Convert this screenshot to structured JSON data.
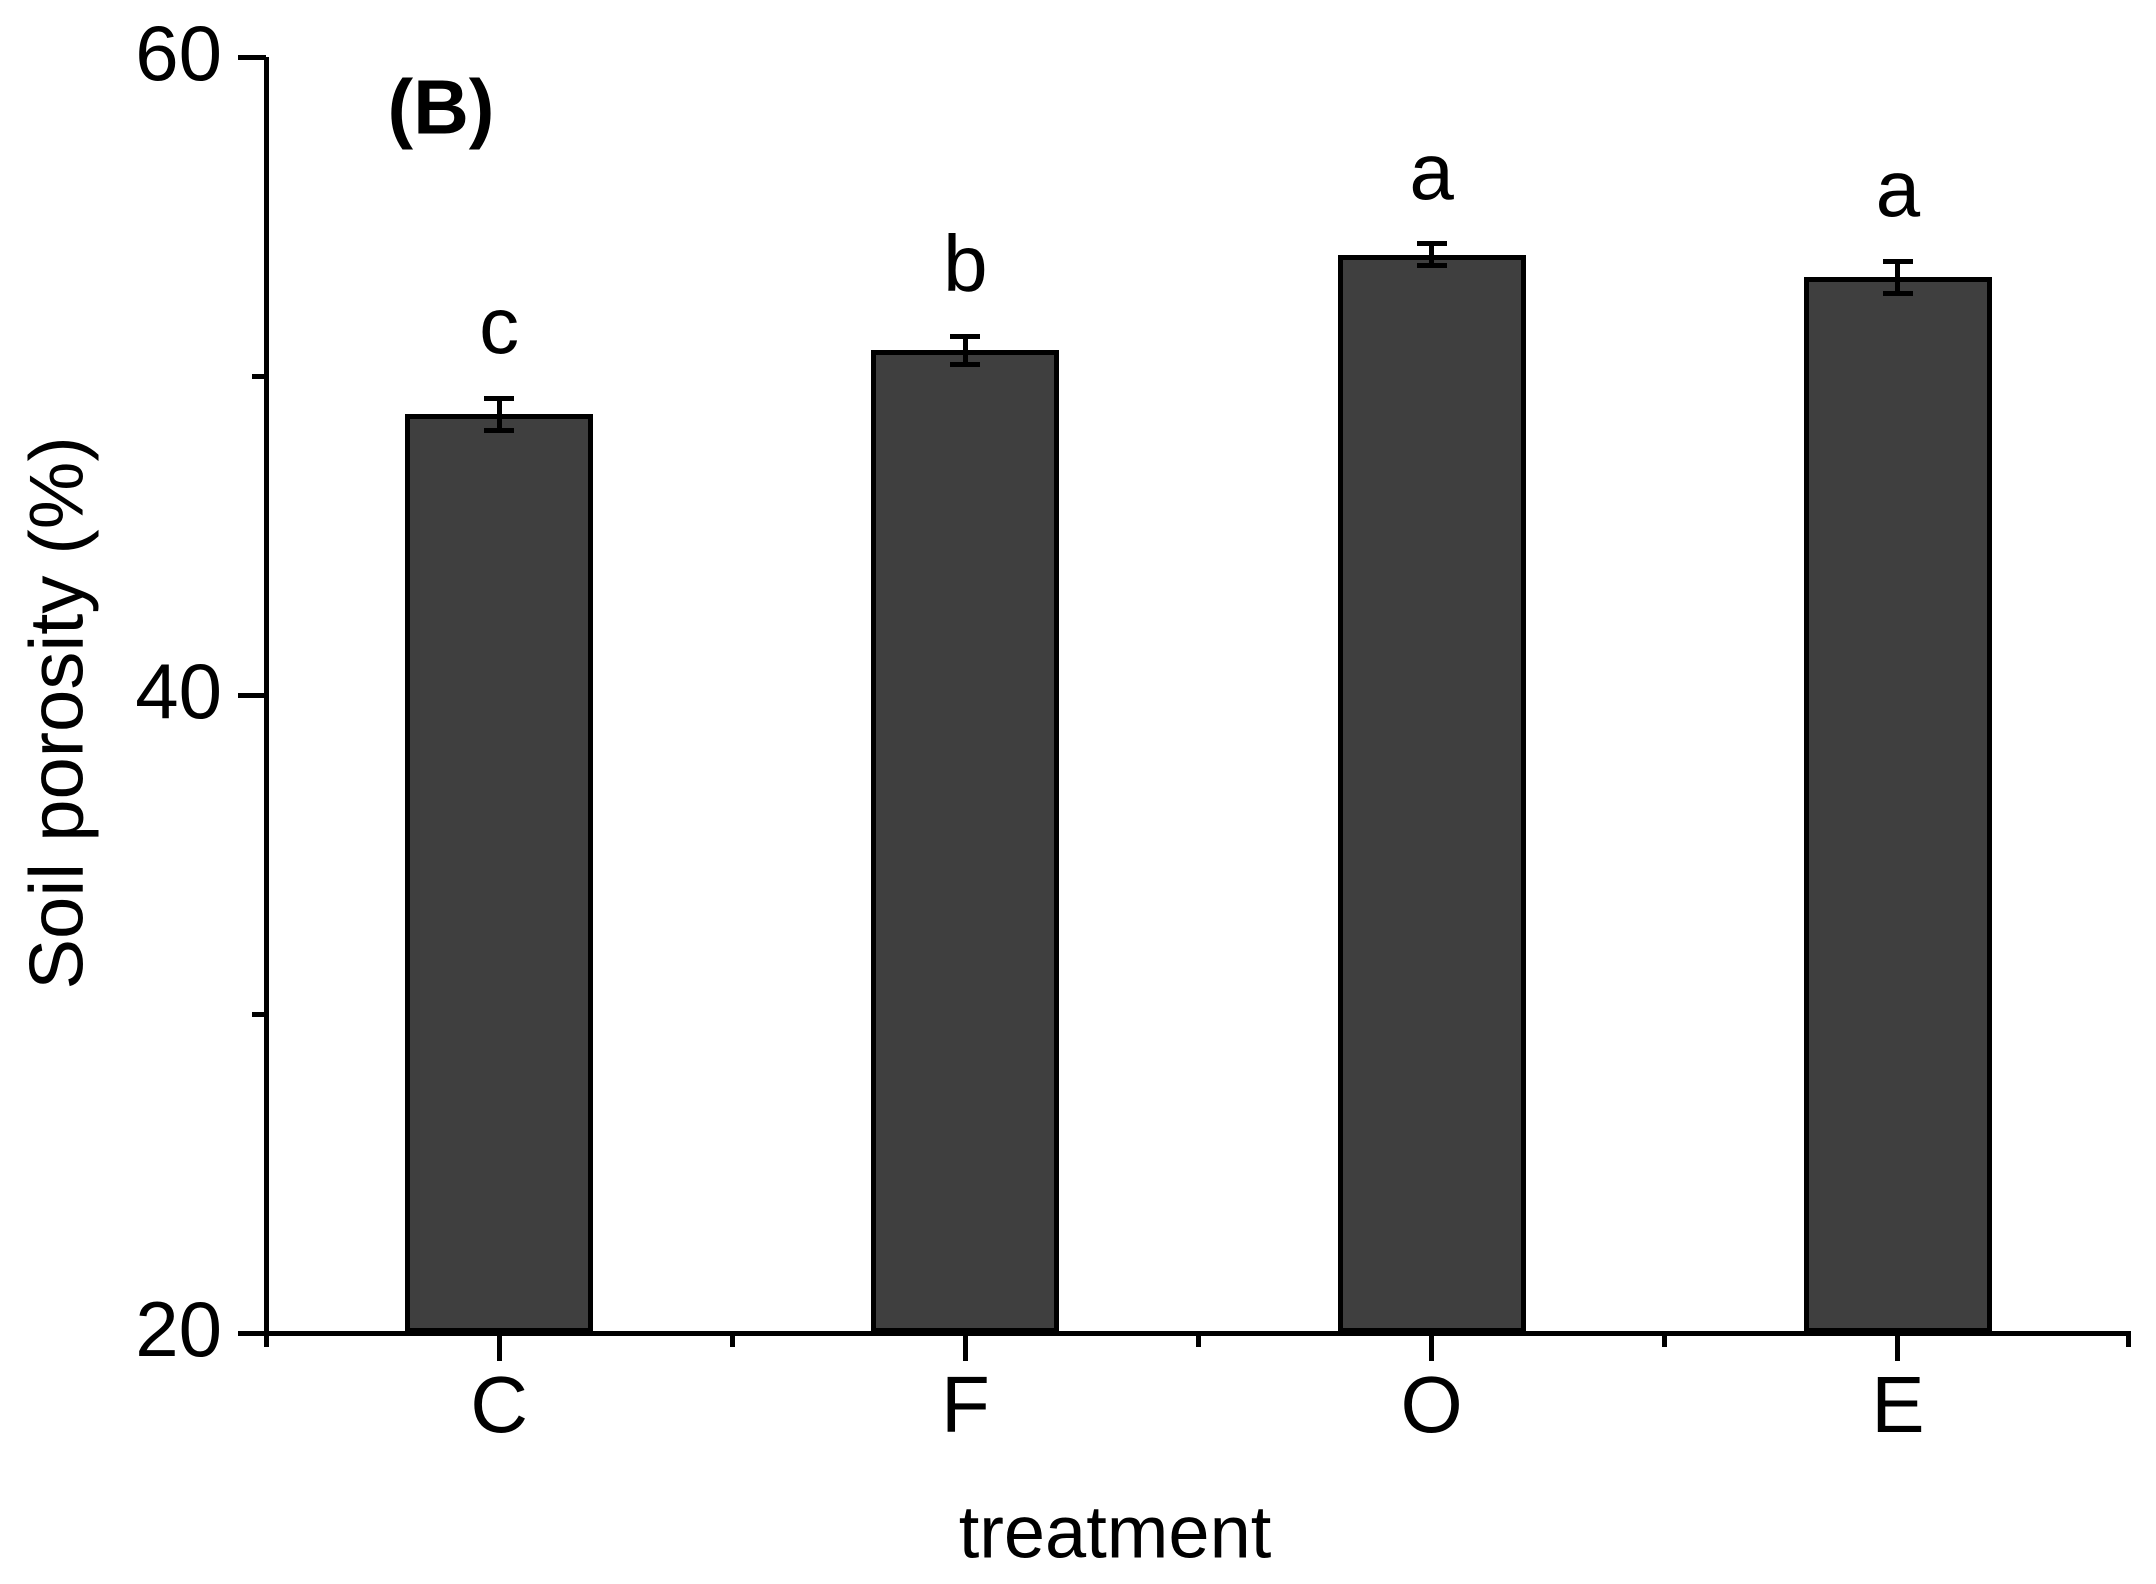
{
  "panel_label": "(B)",
  "chart_data": {
    "type": "bar",
    "title": "",
    "categories": [
      "C",
      "F",
      "O",
      "E"
    ],
    "values": [
      48.8,
      50.8,
      53.8,
      53.1
    ],
    "errors": [
      0.5,
      0.45,
      0.35,
      0.5
    ],
    "sig_letters": [
      "c",
      "b",
      "a",
      "a"
    ],
    "xlabel": "treatment",
    "ylabel": "Soil porosity (%)",
    "ylim": [
      20,
      60
    ],
    "y_major_ticks": [
      20,
      40,
      60
    ],
    "y_minor_ticks": [
      30,
      50
    ],
    "grid": false,
    "legend_position": "none",
    "bar_color": "#3f3f3f",
    "bar_border_color": "#000000",
    "axis_color": "#000000",
    "background_color": "#ffffff"
  }
}
